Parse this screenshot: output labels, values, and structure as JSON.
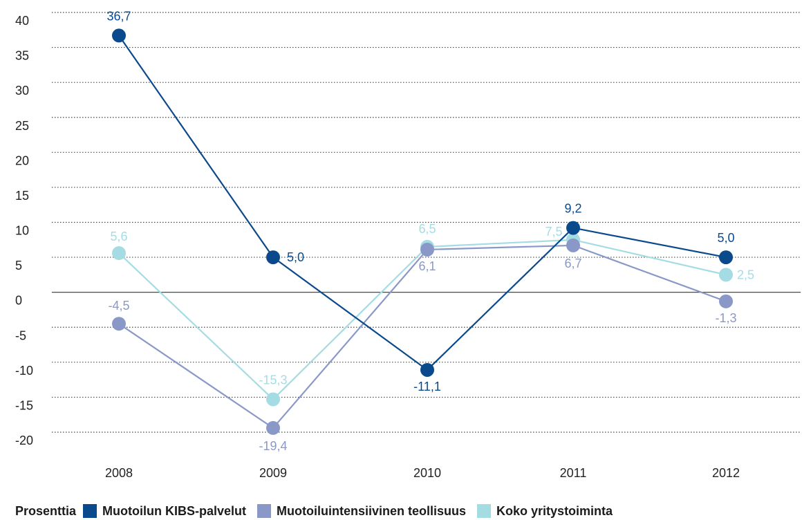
{
  "chart_data": {
    "type": "line",
    "categories": [
      "2008",
      "2009",
      "2010",
      "2011",
      "2012"
    ],
    "ylim": [
      -20,
      40
    ],
    "yticks": [
      40,
      35,
      30,
      25,
      20,
      15,
      10,
      5,
      0,
      -5,
      -10,
      -15,
      -20
    ],
    "grid": "horizontal dotted",
    "legend_title": "Prosenttia",
    "legend_placement": "bottom-left",
    "series": [
      {
        "name": "Muotoilun KIBS-palvelut",
        "color": "#0a4a8c",
        "values": [
          36.7,
          5.0,
          -11.1,
          9.2,
          5.0
        ],
        "labels": [
          "36,7",
          "5,0",
          "-11,1",
          "9,2",
          "5,0"
        ]
      },
      {
        "name": "Muotoiluintensiivinen teollisuus",
        "color": "#8a98c8",
        "values": [
          -4.5,
          -19.4,
          6.1,
          6.7,
          -1.3
        ],
        "labels": [
          "-4,5",
          "-19,4",
          "6,1",
          "6,7",
          "-1,3"
        ]
      },
      {
        "name": "Koko yritystoiminta",
        "color": "#a5dce4",
        "values": [
          5.6,
          -15.3,
          6.5,
          7.5,
          2.5
        ],
        "labels": [
          "5,6",
          "-15,3",
          "6,5",
          "7,5",
          "2,5"
        ]
      }
    ]
  }
}
